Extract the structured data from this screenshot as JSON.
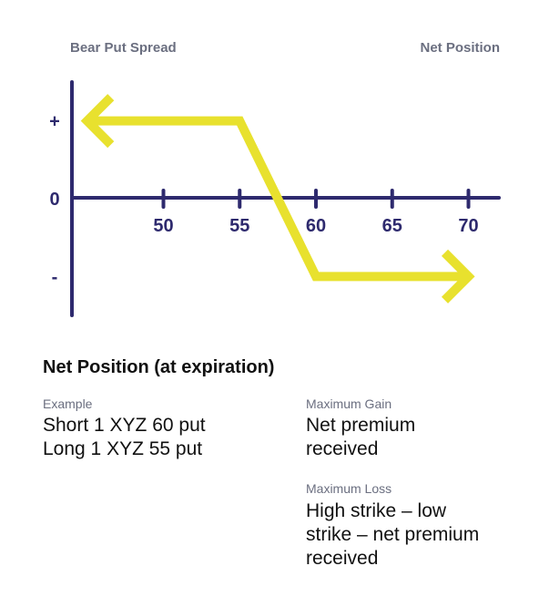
{
  "chart_data": {
    "type": "line",
    "title": "Bear Put Spread",
    "right_label": "Net Position",
    "x_ticks": [
      50,
      55,
      60,
      65,
      70
    ],
    "y_ticks": [
      "+",
      "0",
      "-"
    ],
    "series": [
      {
        "x": [
          45,
          55,
          60,
          70
        ],
        "y": [
          1,
          1,
          -1,
          -1
        ]
      }
    ],
    "xlim": [
      44,
      72
    ],
    "ylim": [
      -1.5,
      1.5
    ],
    "colors": {
      "axis": "#2e2a6e",
      "line": "#e8e12e"
    }
  },
  "net_position": {
    "title": "Net Position (at expiration)",
    "example_label": "Example",
    "example_lines": [
      "Short 1 XYZ 60 put",
      "Long 1 XYZ 55 put"
    ],
    "max_gain_label": "Maximum Gain",
    "max_gain_lines": [
      "Net premium",
      "received"
    ],
    "max_loss_label": "Maximum Loss",
    "max_loss_lines": [
      "High strike – low",
      "strike – net premium",
      "received"
    ]
  }
}
